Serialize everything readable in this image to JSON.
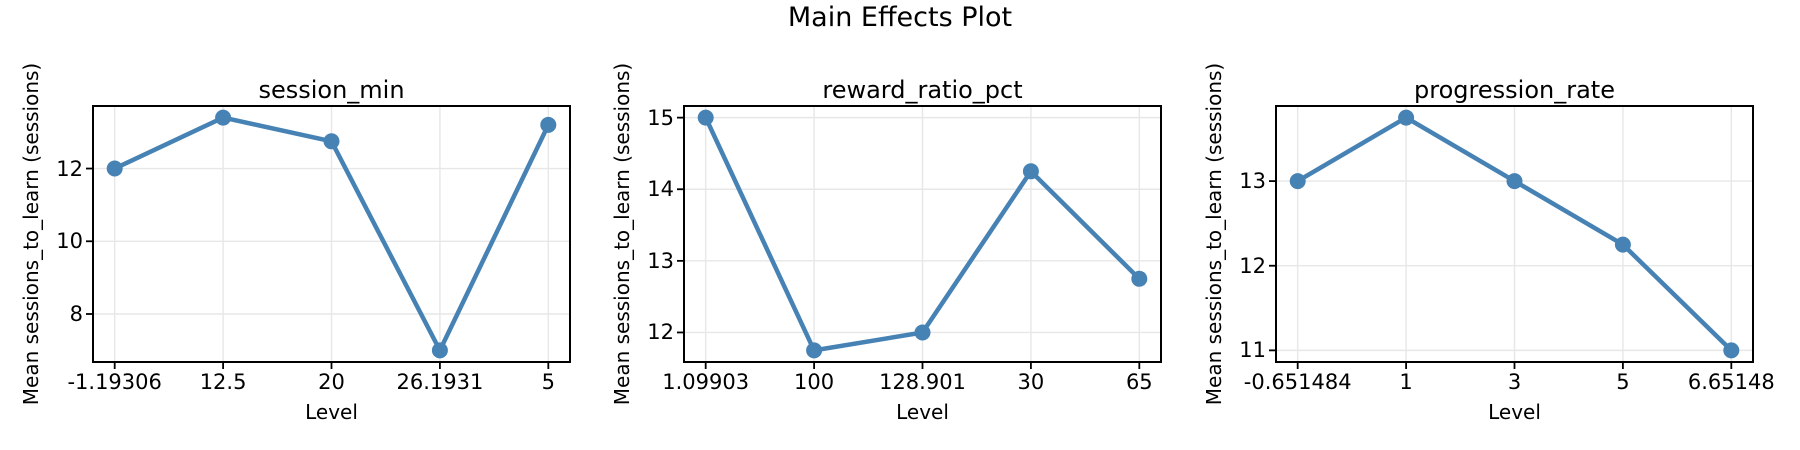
{
  "figure": {
    "title": "Main Effects Plot"
  },
  "style": {
    "line_color": "#4682b4",
    "marker": "circle",
    "grid_color": "#e7e7e7",
    "spine_color": "#000000",
    "tick_color": "#000000",
    "background": "#ffffff"
  },
  "chart_data": [
    {
      "type": "line",
      "title": "session_min",
      "xlabel": "Level",
      "ylabel": "Mean sessions_to_learn (sessions)",
      "categories": [
        "-1.19306",
        "12.5",
        "20",
        "26.1931",
        "5"
      ],
      "values": [
        12.0,
        13.4,
        12.75,
        7.0,
        13.2
      ],
      "yticks": [
        8,
        10,
        12
      ],
      "ylim": [
        6.68,
        13.72
      ],
      "grid": true,
      "legend": false
    },
    {
      "type": "line",
      "title": "reward_ratio_pct",
      "xlabel": "Level",
      "ylabel": "Mean sessions_to_learn (sessions)",
      "categories": [
        "1.09903",
        "100",
        "128.901",
        "30",
        "65"
      ],
      "values": [
        15.0,
        11.75,
        12.0,
        14.25,
        12.75
      ],
      "yticks": [
        12,
        13,
        14,
        15
      ],
      "ylim": [
        11.5875,
        15.1625
      ],
      "grid": true,
      "legend": false
    },
    {
      "type": "line",
      "title": "progression_rate",
      "xlabel": "Level",
      "ylabel": "Mean sessions_to_learn (sessions)",
      "categories": [
        "-0.651484",
        "1",
        "3",
        "5",
        "6.65148"
      ],
      "values": [
        13.0,
        13.75,
        13.0,
        12.25,
        11.0
      ],
      "yticks": [
        11,
        12,
        13
      ],
      "ylim": [
        10.8625,
        13.8875
      ],
      "grid": true,
      "legend": false
    }
  ]
}
